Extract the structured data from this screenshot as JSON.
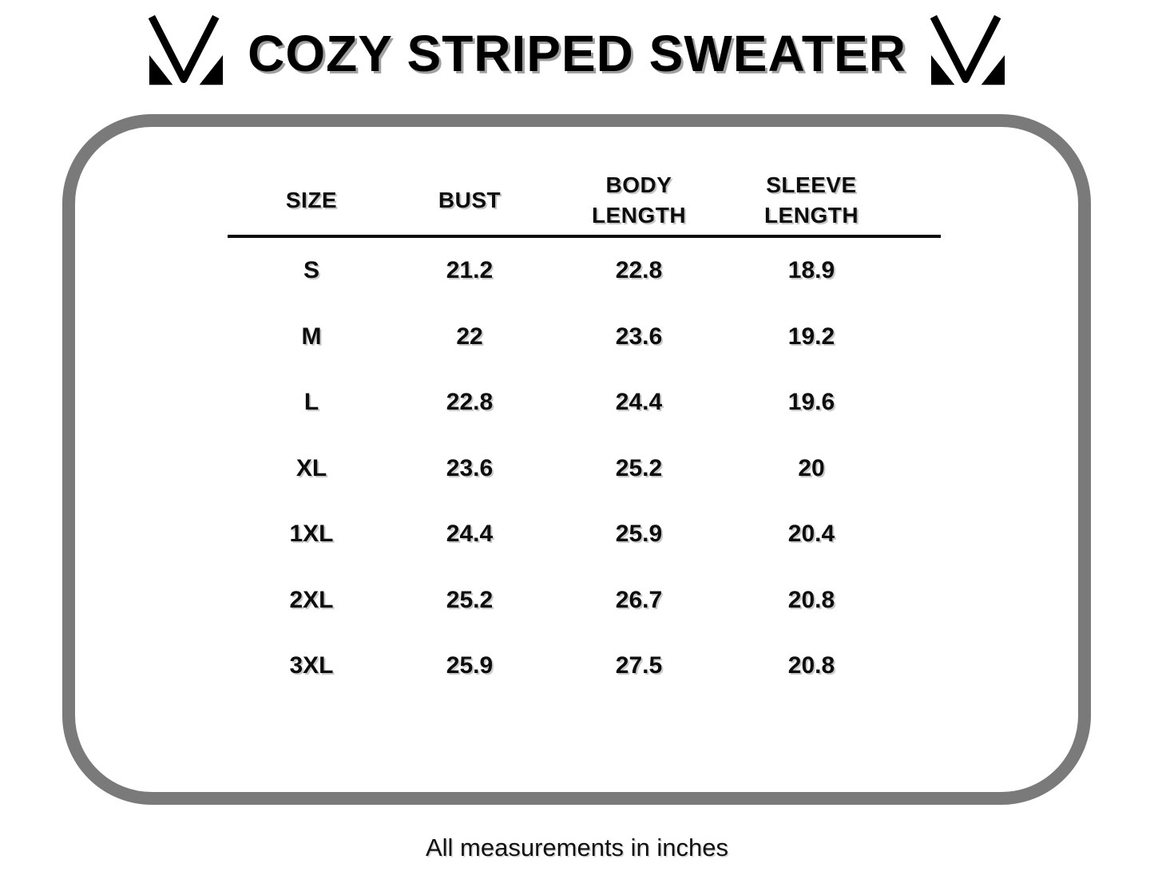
{
  "title": "COZY STRIPED SWEATER",
  "footer_note": "All measurements in inches",
  "brand": {
    "logo_icon": "m-monogram-icon"
  },
  "colors": {
    "background": "#ffffff",
    "text": "#000000",
    "title_shadow": "#a0a0a0",
    "panel_border": "#7a7a7a",
    "divider": "#0d0d0d"
  },
  "chart_data": {
    "type": "table",
    "title": "COZY STRIPED SWEATER",
    "units": "inches",
    "note": "All measurements in inches",
    "columns": [
      "SIZE",
      "BUST",
      "BODY LENGTH",
      "SLEEVE LENGTH"
    ],
    "rows": [
      [
        "S",
        "21.2",
        "22.8",
        "18.9"
      ],
      [
        "M",
        "22",
        "23.6",
        "19.2"
      ],
      [
        "L",
        "22.8",
        "24.4",
        "19.6"
      ],
      [
        "XL",
        "23.6",
        "25.2",
        "20"
      ],
      [
        "1XL",
        "24.4",
        "25.9",
        "20.4"
      ],
      [
        "2XL",
        "25.2",
        "26.7",
        "20.8"
      ],
      [
        "3XL",
        "25.9",
        "27.5",
        "20.8"
      ]
    ]
  }
}
